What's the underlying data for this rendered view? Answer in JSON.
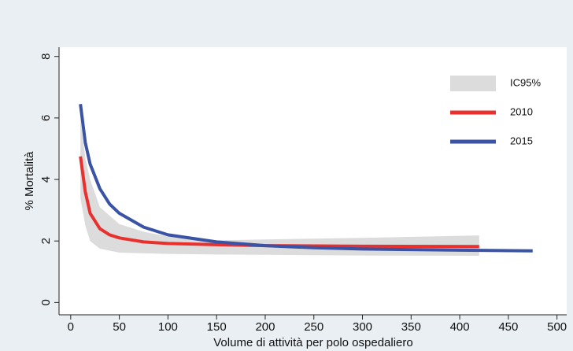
{
  "chart_data": {
    "type": "line",
    "x_label": "Volume di attività per polo ospedaliero",
    "y_label": "% Mortalità",
    "xlim": [
      -12,
      510
    ],
    "ylim": [
      -0.4,
      8.3
    ],
    "xticks": [
      0,
      50,
      100,
      150,
      200,
      250,
      300,
      350,
      400,
      450,
      500
    ],
    "yticks": [
      0,
      2,
      4,
      6,
      8
    ],
    "band": {
      "name": "IC95%",
      "color": "#dcdcdc",
      "x": [
        10,
        15,
        20,
        30,
        50,
        75,
        100,
        150,
        200,
        300,
        420
      ],
      "upper": [
        6.0,
        4.7,
        4.0,
        3.1,
        2.55,
        2.3,
        2.15,
        2.02,
        2.05,
        2.1,
        2.18
      ],
      "lower": [
        3.4,
        2.5,
        2.0,
        1.75,
        1.62,
        1.6,
        1.58,
        1.56,
        1.55,
        1.53,
        1.52
      ]
    },
    "series": [
      {
        "name": "2010",
        "color": "#e8302e",
        "x": [
          10,
          15,
          20,
          30,
          40,
          50,
          75,
          100,
          150,
          200,
          300,
          420
        ],
        "values": [
          4.75,
          3.6,
          2.9,
          2.4,
          2.2,
          2.1,
          1.97,
          1.92,
          1.88,
          1.85,
          1.83,
          1.82
        ]
      },
      {
        "name": "2015",
        "color": "#3a53a4",
        "x": [
          10,
          15,
          20,
          30,
          40,
          50,
          75,
          100,
          150,
          200,
          250,
          300,
          350,
          400,
          475
        ],
        "values": [
          6.45,
          5.2,
          4.5,
          3.7,
          3.2,
          2.9,
          2.45,
          2.2,
          1.97,
          1.85,
          1.78,
          1.74,
          1.72,
          1.7,
          1.68
        ]
      }
    ]
  }
}
